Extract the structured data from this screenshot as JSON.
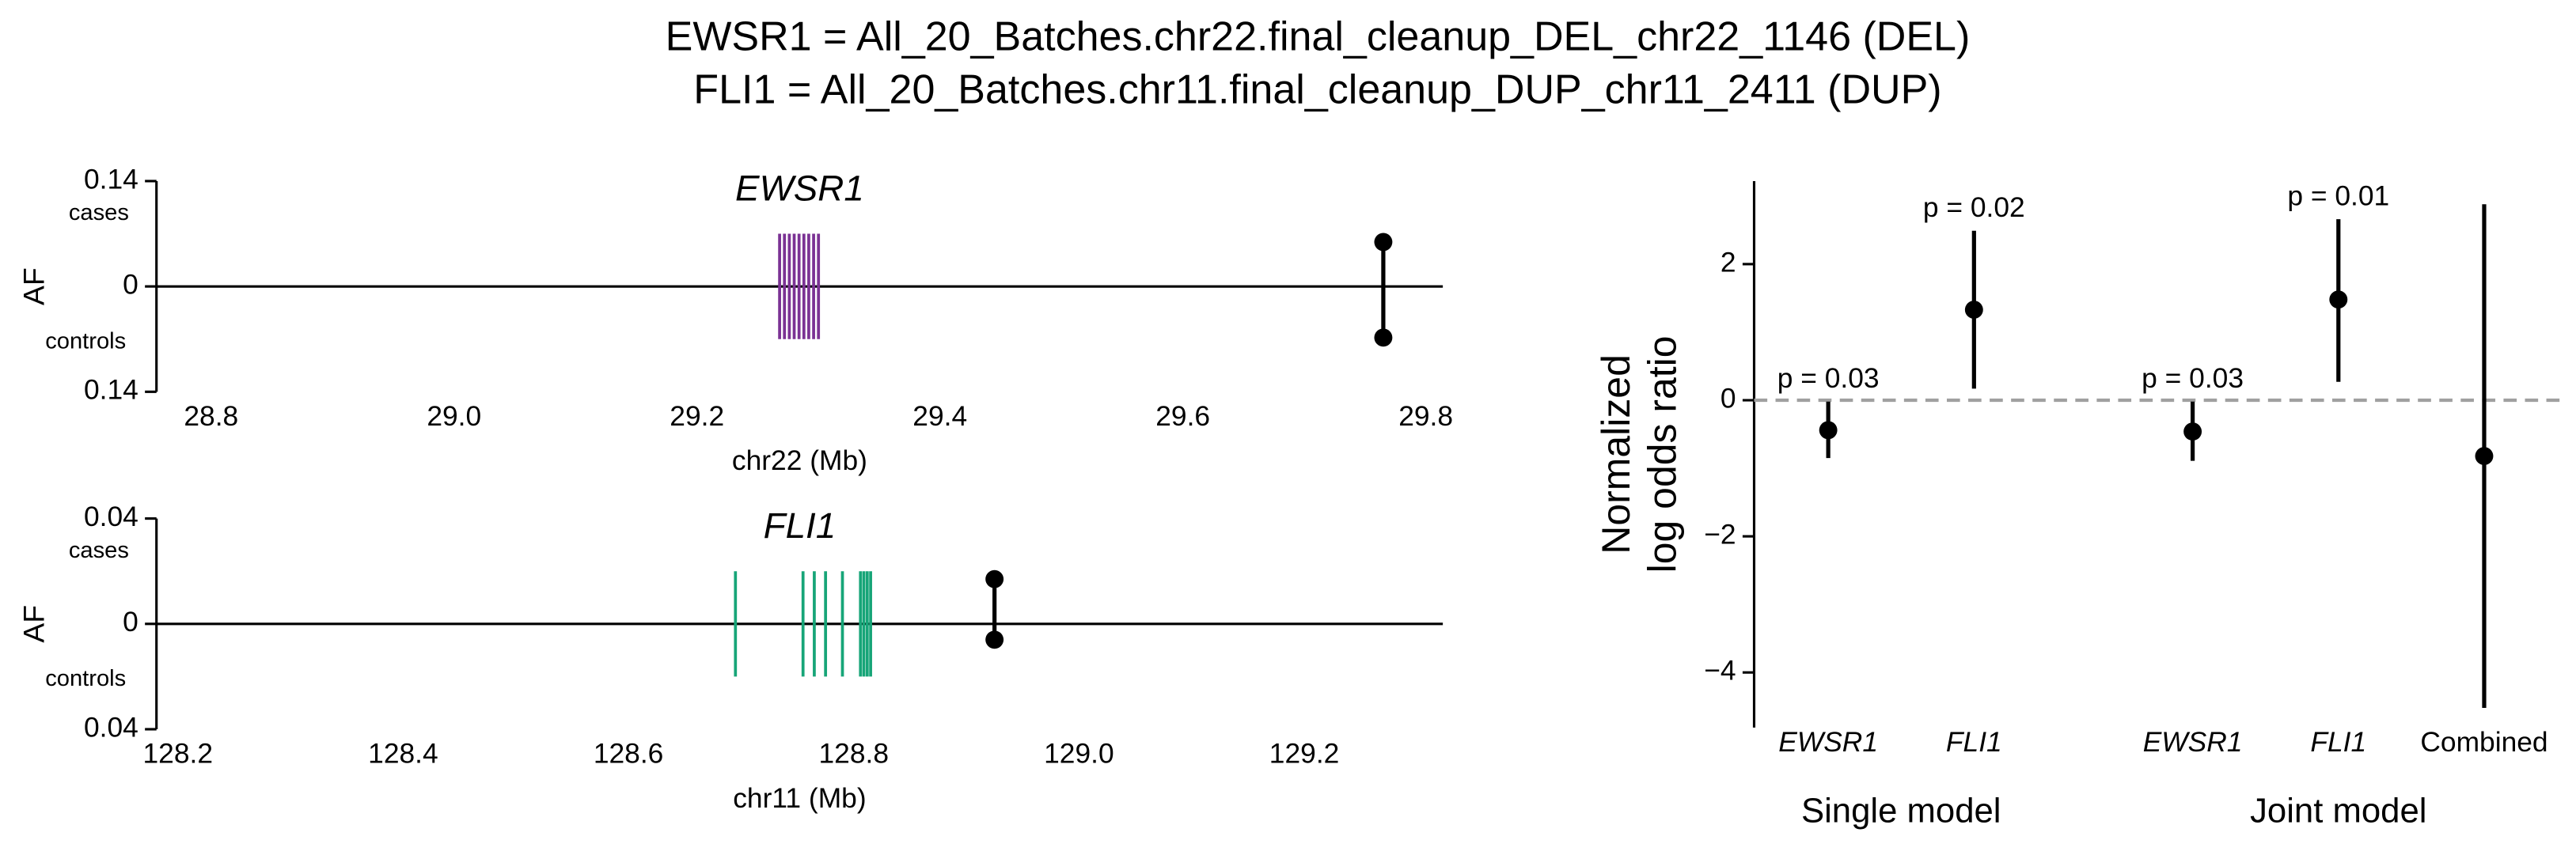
{
  "title": [
    "EWSR1 = All_20_Batches.chr22.final_cleanup_DEL_chr22_1146 (DEL)",
    "FLI1 = All_20_Batches.chr11.final_cleanup_DUP_chr11_2411 (DUP)"
  ],
  "chart_data": [
    {
      "type": "locus",
      "title": "EWSR1",
      "xlabel": "chr22 (Mb)",
      "ylabel": "AF",
      "upper_label": "cases",
      "lower_label": "controls",
      "xlim": [
        28.755,
        29.814
      ],
      "xticks": [
        28.8,
        {
          "value": 29,
          "label": "29.0"
        },
        29.2,
        29.4,
        29.6,
        29.8
      ],
      "ylim": [
        -0.14,
        0.14
      ],
      "yticks": [
        {
          "value": 0.14,
          "label": "0.14"
        },
        0,
        {
          "value": -0.14,
          "label": "0.14"
        }
      ],
      "exon_color": "#7b3294",
      "exons": [
        29.268,
        29.272,
        29.276,
        29.28,
        29.284,
        29.288,
        29.292,
        29.296,
        29.3
      ],
      "variant": {
        "x": 29.765,
        "cases": 0.059,
        "controls": -0.068
      }
    },
    {
      "type": "locus",
      "title": "FLI1",
      "xlabel": "chr11 (Mb)",
      "ylabel": "AF",
      "upper_label": "cases",
      "lower_label": "controls",
      "xlim": [
        128.181,
        129.323
      ],
      "xticks": [
        128.2,
        128.4,
        128.6,
        128.8,
        {
          "value": 129,
          "label": "129.0"
        },
        129.2
      ],
      "ylim": [
        -0.04,
        0.04
      ],
      "yticks": [
        {
          "value": 0.04,
          "label": "0.04"
        },
        0,
        {
          "value": -0.04,
          "label": "0.04"
        }
      ],
      "exon_color": "#17a578",
      "exons": [
        128.695,
        128.755,
        128.765,
        128.775,
        128.79,
        128.806,
        128.809,
        128.812,
        128.815
      ],
      "variant": {
        "x": 128.925,
        "cases": 0.017,
        "controls": -0.006
      }
    },
    {
      "type": "forest",
      "ylabel": [
        "Normalized",
        "log odds ratio"
      ],
      "ylim": [
        -4.81,
        3.22
      ],
      "yticks": [
        2,
        0,
        {
          "value": -2,
          "label": "−2"
        },
        {
          "value": -4,
          "label": "−4"
        }
      ],
      "refline": 0,
      "color": "#000000",
      "groups": [
        {
          "label": "Single model",
          "categories": [
            "EWSR1",
            "FLI1"
          ],
          "italic": [
            true,
            true
          ],
          "values": [
            -0.44,
            1.33
          ],
          "lows": [
            -0.85,
            0.17
          ],
          "highs": [
            -0.02,
            2.49
          ],
          "annotations": [
            "p = 0.03",
            "p = 0.02"
          ]
        },
        {
          "label": "Joint model",
          "categories": [
            "EWSR1",
            "FLI1",
            "Combined"
          ],
          "italic": [
            true,
            true,
            false
          ],
          "values": [
            -0.46,
            1.48,
            -0.82
          ],
          "lows": [
            -0.89,
            0.27,
            -4.52
          ],
          "highs": [
            -0.02,
            2.66,
            2.88
          ],
          "annotations": [
            "p = 0.03",
            "p = 0.01",
            null
          ]
        }
      ]
    }
  ]
}
